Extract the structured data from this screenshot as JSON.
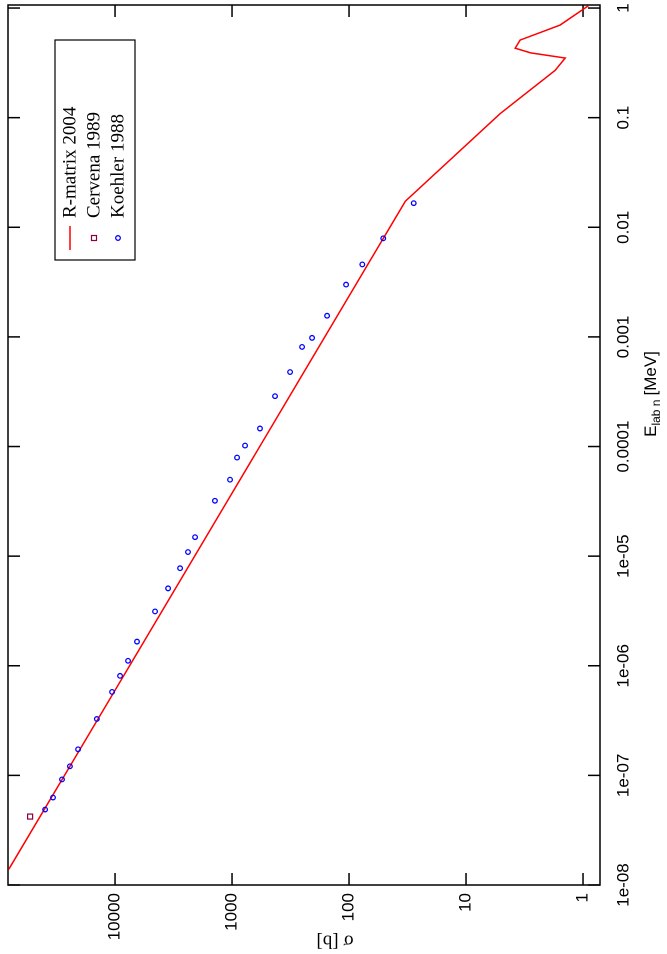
{
  "chart_data": {
    "type": "line",
    "xlabel": {
      "main": "E",
      "sub": "lab n",
      "unit": "[MeV]"
    },
    "ylabel": "σ [b]",
    "xscale": "log",
    "yscale": "log",
    "xlim": [
      1e-08,
      1.066
    ],
    "ylim": [
      0.716,
      82200
    ],
    "xticks": [
      {
        "value": 1e-08,
        "label": "1e-08"
      },
      {
        "value": 1e-07,
        "label": "1e-07"
      },
      {
        "value": 1e-06,
        "label": "1e-06"
      },
      {
        "value": 1e-05,
        "label": "1e-05"
      },
      0.0001,
      0.001,
      0.01,
      0.1,
      1
    ],
    "yticks": [
      1,
      10,
      100,
      1000,
      10000
    ],
    "legend": "upper right",
    "series": [
      {
        "name": "R-matrix 2004",
        "style": "line",
        "color": "#ff0000",
        "x": [
          1.39e-08,
          0.0173,
          0.109,
          0.27,
          0.35,
          0.39,
          0.43,
          0.51,
          0.7,
          1.05
        ],
        "values": [
          81000,
          33,
          5.1,
          1.73,
          1.42,
          2.8,
          3.8,
          3.45,
          1.57,
          0.9
        ]
      },
      {
        "name": "Cervena 1989",
        "style": "square",
        "color": "#8b0045",
        "x": [
          4.21e-08
        ],
        "values": [
          53200
        ]
      },
      {
        "name": "Koehler 1988",
        "style": "circle",
        "color": "#0000ff",
        "x": [
          4.88e-08,
          6.28e-08,
          9.18e-08,
          1.21e-07,
          1.73e-07,
          3.27e-07,
          5.77e-07,
          8.09e-07,
          1.11e-06,
          1.66e-06,
          3.13e-06,
          5.08e-06,
          7.76e-06,
          1.09e-05,
          1.49e-05,
          3.2e-05,
          4.98e-05,
          7.93e-05,
          0.000102,
          0.000146,
          0.000288,
          0.000478,
          0.00081,
          0.00098,
          0.00156,
          0.003,
          0.00458,
          0.00793,
          0.0166
        ],
        "values": [
          39600,
          33900,
          28400,
          24300,
          20700,
          14300,
          10600,
          9060,
          7740,
          6490,
          4550,
          3520,
          2780,
          2380,
          2070,
          1400,
          1040,
          906,
          774,
          577,
          429,
          319,
          252,
          207,
          154,
          106,
          77,
          51,
          28
        ]
      }
    ]
  }
}
